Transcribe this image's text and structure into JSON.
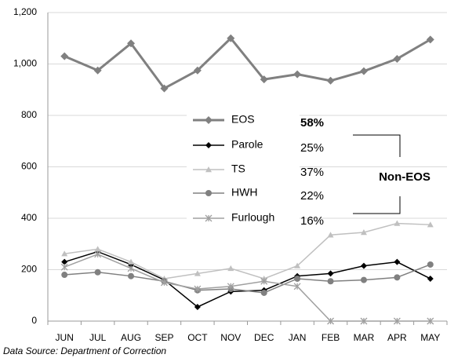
{
  "chart_data": {
    "type": "line",
    "categories": [
      "JUN",
      "JUL",
      "AUG",
      "SEP",
      "OCT",
      "NOV",
      "DEC",
      "JAN",
      "FEB",
      "MAR",
      "APR",
      "MAY"
    ],
    "series": [
      {
        "name": "EOS",
        "color": "#808080",
        "marker": "diamond",
        "values": [
          1030,
          975,
          1080,
          905,
          975,
          1100,
          940,
          960,
          935,
          972,
          1020,
          1095
        ]
      },
      {
        "name": "Parole",
        "color": "#000000",
        "marker": "diamond",
        "values": [
          230,
          270,
          220,
          160,
          55,
          115,
          120,
          175,
          185,
          215,
          230,
          165
        ]
      },
      {
        "name": "TS",
        "color": "#c0c0c0",
        "marker": "triangle",
        "values": [
          262,
          280,
          230,
          165,
          185,
          205,
          165,
          215,
          335,
          345,
          380,
          375
        ]
      },
      {
        "name": "HWH",
        "color": "#808080",
        "marker": "circle",
        "values": [
          180,
          190,
          175,
          155,
          120,
          125,
          110,
          165,
          155,
          160,
          170,
          220
        ]
      },
      {
        "name": "Furlough",
        "color": "#a0a0a0",
        "marker": "star",
        "values": [
          210,
          260,
          205,
          150,
          125,
          135,
          155,
          135,
          0,
          0,
          0,
          0
        ]
      }
    ],
    "legend_percentages": [
      "58%",
      "25%",
      "37%",
      "22%",
      "16%"
    ],
    "bracket_label": "Non-EOS",
    "source": "Data Source: Department of Correction",
    "ylim": [
      0,
      1200
    ],
    "yticks": [
      0,
      200,
      400,
      600,
      800,
      {
        "value": 1000,
        "label": "1,000"
      },
      {
        "value": 1200,
        "label": "1,200"
      }
    ],
    "grid": true
  }
}
